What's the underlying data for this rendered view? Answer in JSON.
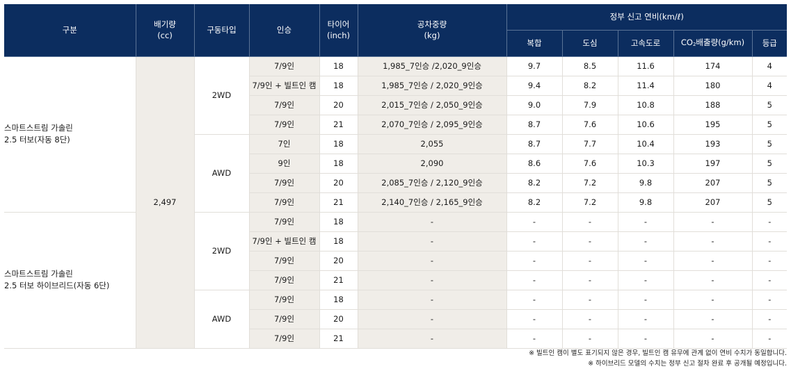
{
  "header": {
    "gubun": "구분",
    "cc_line1": "배기량",
    "cc_line2": "(cc)",
    "drive": "구동타입",
    "seats": "인승",
    "tire_line1": "타이어",
    "tire_line2": "(inch)",
    "weight_line1": "공차중량",
    "weight_line2": "(kg)",
    "fuel_group": "정부 신고 연비(km/ℓ)",
    "combined": "복합",
    "city": "도심",
    "highway": "고속도로",
    "co2_prefix": "CO",
    "co2_sub": "2",
    "co2_suffix": "배출량(g/km)",
    "grade": "등급"
  },
  "groups": [
    {
      "name_line1": "스마트스트림 가솔린",
      "name_line2": "2.5 터보(자동 8단)",
      "drives": [
        {
          "drive": "2WD",
          "rows": [
            {
              "seats": "7/9인",
              "tire": "18",
              "weight": "1,985_7인승  /2,020_9인승",
              "combined": "9.7",
              "city": "8.5",
              "highway": "11.6",
              "co2": "174",
              "grade": "4"
            },
            {
              "seats": "7/9인 + 빌트인 캠",
              "tire": "18",
              "weight": "1,985_7인승 / 2,020_9인승",
              "combined": "9.4",
              "city": "8.2",
              "highway": "11.4",
              "co2": "180",
              "grade": "4"
            },
            {
              "seats": "7/9인",
              "tire": "20",
              "weight": "2,015_7인승 / 2,050_9인승",
              "combined": "9.0",
              "city": "7.9",
              "highway": "10.8",
              "co2": "188",
              "grade": "5"
            },
            {
              "seats": "7/9인",
              "tire": "21",
              "weight": "2,070_7인승 / 2,095_9인승",
              "combined": "8.7",
              "city": "7.6",
              "highway": "10.6",
              "co2": "195",
              "grade": "5"
            }
          ]
        },
        {
          "drive": "AWD",
          "rows": [
            {
              "seats": "7인",
              "tire": "18",
              "weight": "2,055",
              "combined": "8.7",
              "city": "7.7",
              "highway": "10.4",
              "co2": "193",
              "grade": "5"
            },
            {
              "seats": "9인",
              "tire": "18",
              "weight": "2,090",
              "combined": "8.6",
              "city": "7.6",
              "highway": "10.3",
              "co2": "197",
              "grade": "5"
            },
            {
              "seats": "7/9인",
              "tire": "20",
              "weight": "2,085_7인승 / 2,120_9인승",
              "combined": "8.2",
              "city": "7.2",
              "highway": "9.8",
              "co2": "207",
              "grade": "5"
            },
            {
              "seats": "7/9인",
              "tire": "21",
              "weight": "2,140_7인승 / 2,165_9인승",
              "combined": "8.2",
              "city": "7.2",
              "highway": "9.8",
              "co2": "207",
              "grade": "5"
            }
          ]
        }
      ]
    },
    {
      "name_line1": "스마트스트림 가솔린",
      "name_line2": "2.5 터보 하이브리드(자동 6단)",
      "drives": [
        {
          "drive": "2WD",
          "rows": [
            {
              "seats": "7/9인",
              "tire": "18",
              "weight": "-",
              "combined": "-",
              "city": "-",
              "highway": "-",
              "co2": "-",
              "grade": "-"
            },
            {
              "seats": "7/9인 + 빌트인 캠",
              "tire": "18",
              "weight": "-",
              "combined": "-",
              "city": "-",
              "highway": "-",
              "co2": "-",
              "grade": "-"
            },
            {
              "seats": "7/9인",
              "tire": "20",
              "weight": "-",
              "combined": "-",
              "city": "-",
              "highway": "-",
              "co2": "-",
              "grade": "-"
            },
            {
              "seats": "7/9인",
              "tire": "21",
              "weight": "-",
              "combined": "-",
              "city": "-",
              "highway": "-",
              "co2": "-",
              "grade": "-"
            }
          ]
        },
        {
          "drive": "AWD",
          "rows": [
            {
              "seats": "7/9인",
              "tire": "18",
              "weight": "-",
              "combined": "-",
              "city": "-",
              "highway": "-",
              "co2": "-",
              "grade": "-"
            },
            {
              "seats": "7/9인",
              "tire": "20",
              "weight": "-",
              "combined": "-",
              "city": "-",
              "highway": "-",
              "co2": "-",
              "grade": "-"
            },
            {
              "seats": "7/9인",
              "tire": "21",
              "weight": "-",
              "combined": "-",
              "city": "-",
              "highway": "-",
              "co2": "-",
              "grade": "-"
            }
          ]
        }
      ]
    }
  ],
  "displacement": "2,497",
  "notes": [
    "※ 빌트인 캠이 별도 표기되지 않은 경우, 빌트인 캠 유무에 관계 없이 연비 수치가 동일합니다.",
    "※ 하이브리드 모델의 수치는 정부 신고 절차 완료 후 공개될 예정입니다."
  ],
  "colors": {
    "header_bg": "#0c2d5f",
    "shaded_col": "#f0ede8"
  }
}
